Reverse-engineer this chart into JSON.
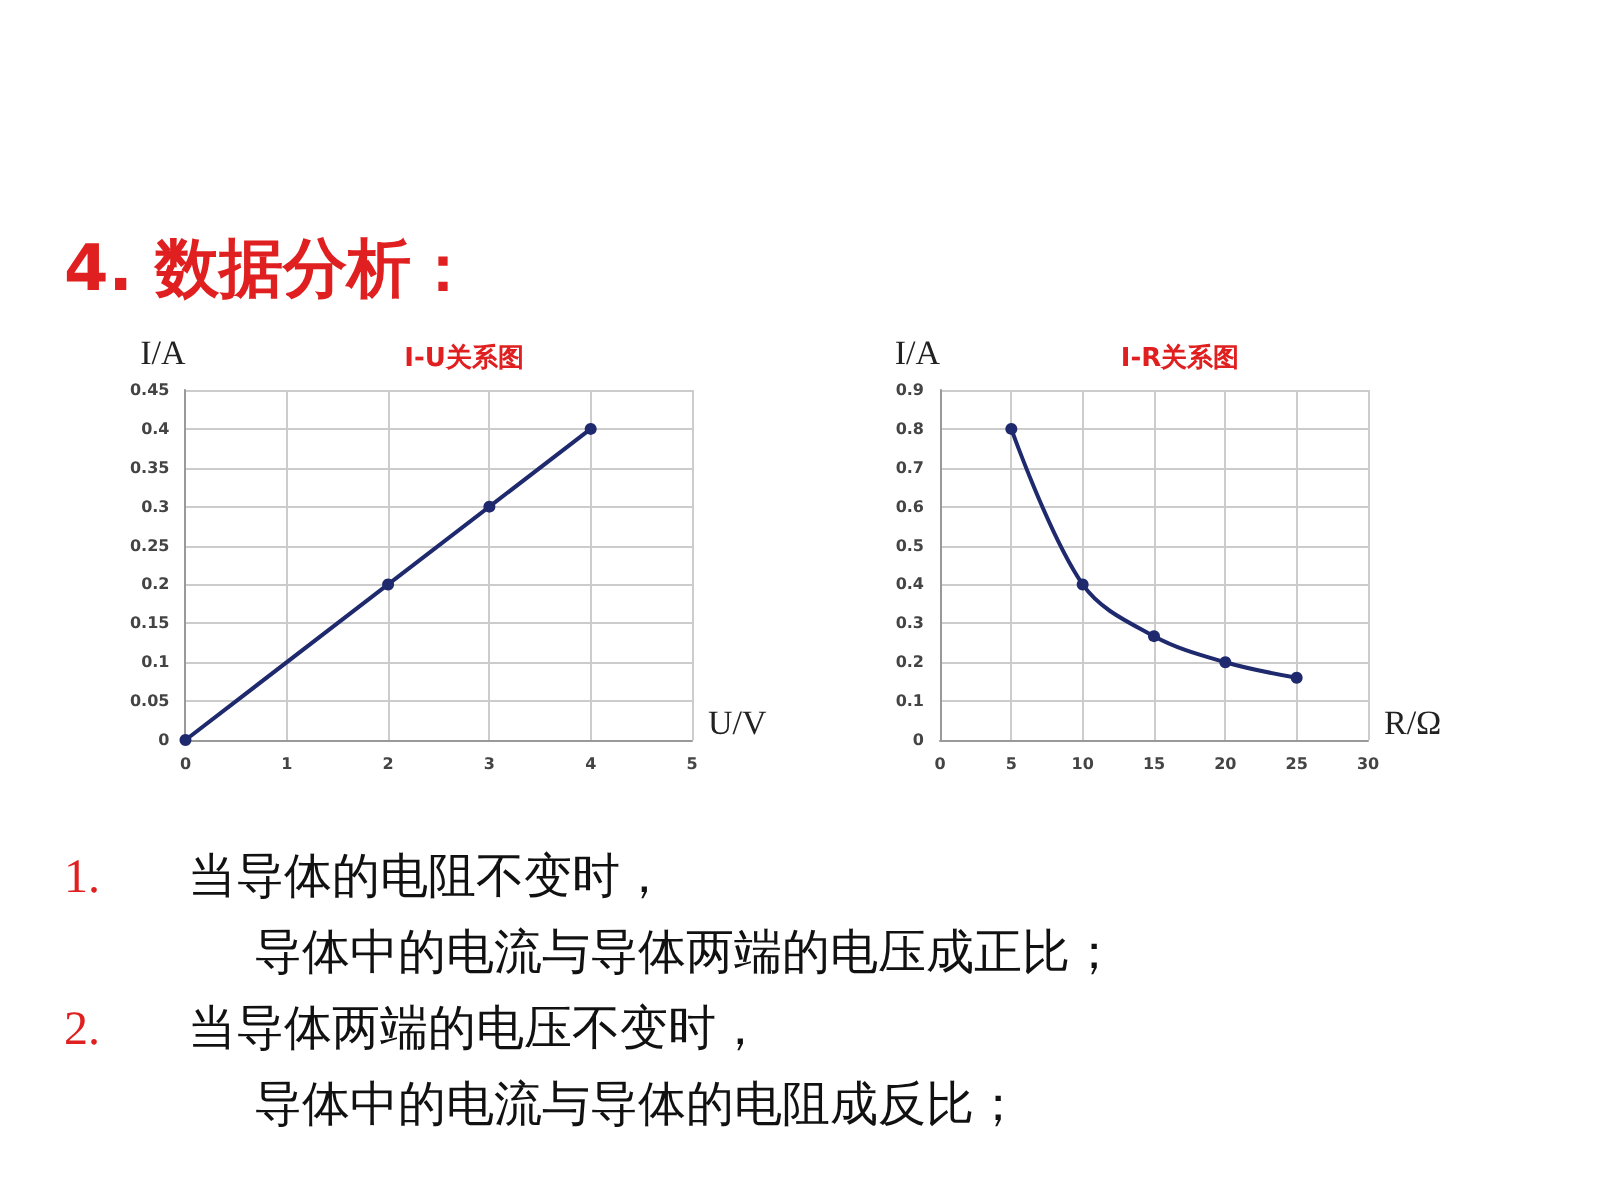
{
  "chart_data": [
    {
      "type": "line",
      "title": "I-U关系图",
      "xlabel": "U/V",
      "ylabel": "I/A",
      "annotations": [
        "4. 数据分析："
      ],
      "x": [
        0,
        2,
        3,
        4
      ],
      "values": [
        0,
        0.2,
        0.3,
        0.4
      ],
      "color": "#1f2a6e",
      "xlim": [
        0,
        5
      ],
      "xticks": [
        0,
        1,
        2,
        3,
        4,
        5
      ],
      "ylim": [
        0,
        0.45
      ],
      "yticks": [
        0,
        0.05,
        0.1,
        0.15,
        0.2,
        0.25,
        0.3,
        0.35,
        0.4,
        0.45
      ],
      "grid": true,
      "marker": "circle"
    },
    {
      "type": "line",
      "title": "I-R关系图",
      "xlabel": "R/Ω",
      "ylabel": "I/A",
      "annotations": [
        "1.　当导体的电阻不变时，",
        "导体中的电流与导体两端的电压成正比；",
        "2.　当导体两端的电压不变时，",
        "导体中的电流与导体的电阻成反比；"
      ],
      "x": [
        5,
        10,
        15,
        20,
        25
      ],
      "values": [
        0.8,
        0.4,
        0.267,
        0.2,
        0.16
      ],
      "color": "#1f2a6e",
      "xlim": [
        0,
        30
      ],
      "xticks": [
        0,
        5,
        10,
        15,
        20,
        25,
        30
      ],
      "ylim": [
        0,
        0.9
      ],
      "yticks": [
        0,
        0.1,
        0.2,
        0.3,
        0.4,
        0.5,
        0.6,
        0.7,
        0.8,
        0.9
      ],
      "grid": true,
      "marker": "circle"
    }
  ]
}
